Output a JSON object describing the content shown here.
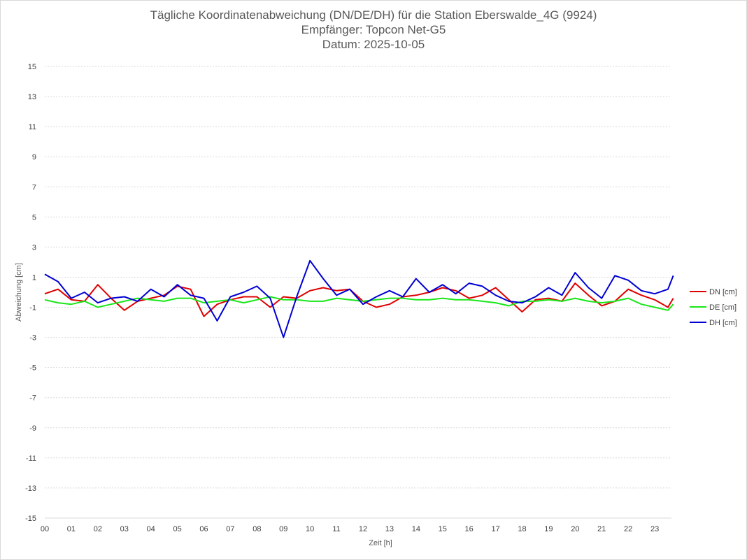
{
  "chart_data": {
    "type": "line",
    "title": "Tägliche Koordinatenabweichung (DN/DE/DH) für die Station Eberswalde_4G (9924)",
    "subtitle_receiver": "Empfänger: Topcon Net-G5",
    "subtitle_date": "Datum: 2025-10-05",
    "xlabel": "Zeit [h]",
    "ylabel": "Abweichung [cm]",
    "xlim": [
      0,
      24
    ],
    "ylim": [
      -15,
      15
    ],
    "yticks": [
      "15",
      "13",
      "11",
      "9",
      "7",
      "5",
      "3",
      "1",
      "-1",
      "-3",
      "-5",
      "-7",
      "-9",
      "-11",
      "-13",
      "-15"
    ],
    "xticks": [
      "00",
      "01",
      "02",
      "03",
      "04",
      "05",
      "06",
      "07",
      "08",
      "09",
      "10",
      "11",
      "12",
      "13",
      "14",
      "15",
      "16",
      "17",
      "18",
      "19",
      "20",
      "21",
      "22",
      "23"
    ],
    "grid": true,
    "legend_position": "right",
    "x_hours": [
      0,
      0.5,
      1,
      1.5,
      2,
      2.5,
      3,
      3.5,
      4,
      4.5,
      5,
      5.5,
      6,
      6.5,
      7,
      7.5,
      8,
      8.5,
      9,
      9.5,
      10,
      10.5,
      11,
      11.5,
      12,
      12.5,
      13,
      13.5,
      14,
      14.5,
      15,
      15.5,
      16,
      16.5,
      17,
      17.5,
      18,
      18.5,
      19,
      19.5,
      20,
      20.5,
      21,
      21.5,
      22,
      22.5,
      23,
      23.5,
      23.7
    ],
    "series": [
      {
        "name": "DN [cm]",
        "color": "#e00000",
        "values": [
          -0.1,
          0.2,
          -0.5,
          -0.6,
          0.5,
          -0.4,
          -1.2,
          -0.6,
          -0.4,
          -0.2,
          0.4,
          0.2,
          -1.6,
          -0.8,
          -0.5,
          -0.3,
          -0.3,
          -1.0,
          -0.3,
          -0.4,
          0.1,
          0.3,
          0.1,
          0.2,
          -0.6,
          -1.0,
          -0.8,
          -0.3,
          -0.2,
          0.0,
          0.3,
          0.1,
          -0.4,
          -0.2,
          0.3,
          -0.5,
          -1.3,
          -0.5,
          -0.4,
          -0.6,
          0.6,
          -0.2,
          -0.9,
          -0.6,
          0.2,
          -0.2,
          -0.5,
          -1.0,
          -0.4
        ]
      },
      {
        "name": "DE [cm]",
        "color": "#19e619",
        "values": [
          -0.5,
          -0.7,
          -0.8,
          -0.6,
          -1.0,
          -0.8,
          -0.6,
          -0.4,
          -0.5,
          -0.6,
          -0.4,
          -0.4,
          -0.7,
          -0.6,
          -0.5,
          -0.7,
          -0.5,
          -0.3,
          -0.5,
          -0.5,
          -0.6,
          -0.6,
          -0.4,
          -0.5,
          -0.6,
          -0.5,
          -0.4,
          -0.4,
          -0.5,
          -0.5,
          -0.4,
          -0.5,
          -0.5,
          -0.6,
          -0.7,
          -0.9,
          -0.6,
          -0.6,
          -0.5,
          -0.6,
          -0.4,
          -0.6,
          -0.7,
          -0.6,
          -0.4,
          -0.8,
          -1.0,
          -1.2,
          -0.8
        ]
      },
      {
        "name": "DH [cm]",
        "color": "#0000d4",
        "values": [
          1.2,
          0.7,
          -0.4,
          0.0,
          -0.7,
          -0.4,
          -0.3,
          -0.6,
          0.2,
          -0.3,
          0.5,
          -0.2,
          -0.4,
          -1.9,
          -0.3,
          0.0,
          0.4,
          -0.4,
          -3.0,
          -0.3,
          2.1,
          0.9,
          -0.2,
          0.2,
          -0.8,
          -0.3,
          0.1,
          -0.3,
          0.9,
          0.0,
          0.5,
          -0.1,
          0.6,
          0.4,
          -0.2,
          -0.6,
          -0.7,
          -0.3,
          0.3,
          -0.2,
          1.3,
          0.3,
          -0.4,
          1.1,
          0.8,
          0.1,
          -0.1,
          0.2,
          1.1
        ]
      }
    ]
  }
}
